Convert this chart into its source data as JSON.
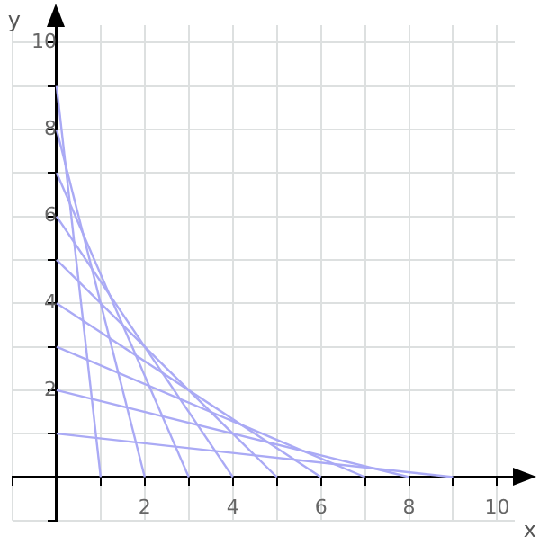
{
  "chart_data": {
    "type": "line",
    "xlabel": "x",
    "ylabel": "y",
    "series": [
      {
        "type": "line",
        "color": "#aaaaf5",
        "x": [
          0,
          1
        ],
        "values": [
          9,
          0
        ]
      },
      {
        "type": "line",
        "color": "#aaaaf5",
        "x": [
          0,
          2
        ],
        "values": [
          8,
          0
        ]
      },
      {
        "type": "line",
        "color": "#aaaaf5",
        "x": [
          0,
          3
        ],
        "values": [
          7,
          0
        ]
      },
      {
        "type": "line",
        "color": "#aaaaf5",
        "x": [
          0,
          4
        ],
        "values": [
          6,
          0
        ]
      },
      {
        "type": "line",
        "color": "#aaaaf5",
        "x": [
          0,
          5
        ],
        "values": [
          5,
          0
        ]
      },
      {
        "type": "line",
        "color": "#aaaaf5",
        "x": [
          0,
          6
        ],
        "values": [
          4,
          0
        ]
      },
      {
        "type": "line",
        "color": "#aaaaf5",
        "x": [
          0,
          7
        ],
        "values": [
          3,
          0
        ]
      },
      {
        "type": "line",
        "color": "#aaaaf5",
        "x": [
          0,
          8
        ],
        "values": [
          2,
          0
        ]
      },
      {
        "type": "line",
        "color": "#aaaaf5",
        "x": [
          0,
          9
        ],
        "values": [
          1,
          0
        ]
      }
    ],
    "xlim": [
      -1,
      10.4
    ],
    "ylim": [
      -1,
      10.4
    ],
    "xticks": [
      {
        "value": -1,
        "label": null
      },
      {
        "value": 0,
        "label": null
      },
      {
        "value": 1,
        "label": null
      },
      2,
      {
        "value": 3,
        "label": null
      },
      4,
      {
        "value": 5,
        "label": null
      },
      6,
      {
        "value": 7,
        "label": null
      },
      8,
      {
        "value": 9,
        "label": null
      },
      10
    ],
    "yticks": [
      {
        "value": -1,
        "label": null
      },
      {
        "value": 0,
        "label": null
      },
      {
        "value": 1,
        "label": null
      },
      2,
      {
        "value": 3,
        "label": null
      },
      4,
      {
        "value": 5,
        "label": null
      },
      6,
      {
        "value": 7,
        "label": null
      },
      8,
      {
        "value": 9,
        "label": null
      },
      10
    ],
    "grid": true,
    "legend": false,
    "marker": "none",
    "line_style": "solid"
  }
}
